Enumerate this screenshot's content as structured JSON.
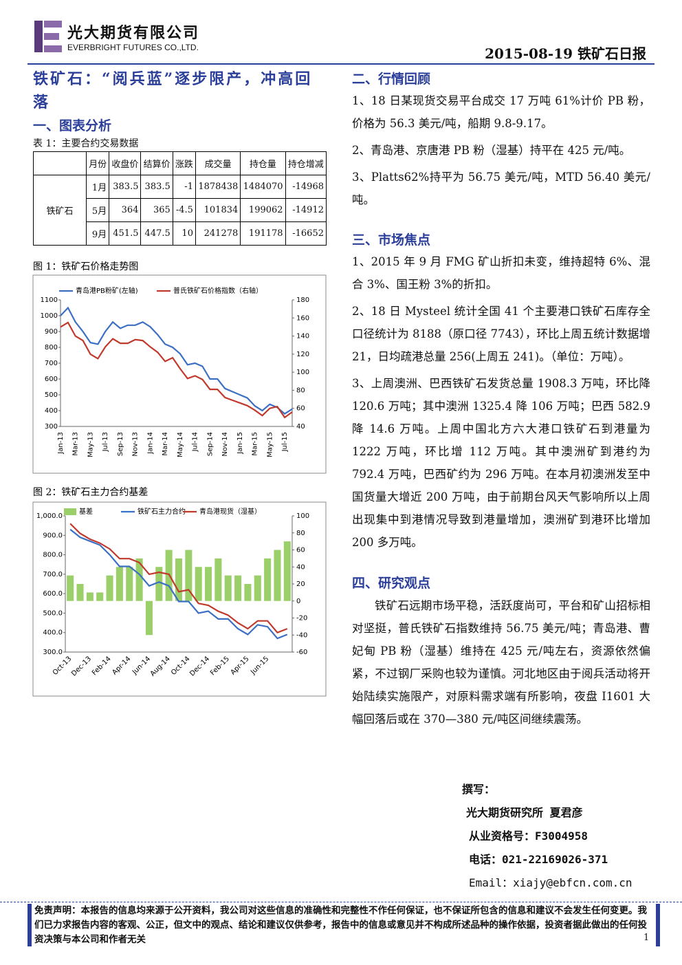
{
  "header": {
    "company_cn": "光大期货有限公司",
    "company_en": "EVERBRIGHT FUTURES CO.,LTD.",
    "date_title": "2015-08-19 铁矿石日报"
  },
  "title": "铁矿石：“阅兵蓝”逐步限产，冲高回落",
  "section1": {
    "heading": "一、图表分析",
    "table_caption": "表 1：主要合约交易数据",
    "table": {
      "columns": [
        "月份",
        "收盘价",
        "结算价",
        "涨跌",
        "成交量",
        "持仓量",
        "持仓增减"
      ],
      "group": "铁矿石",
      "rows": [
        [
          "1月",
          383.5,
          383.5,
          -1,
          1878438,
          1484070,
          -14968
        ],
        [
          "5月",
          364,
          365,
          -4.5,
          101834,
          199062,
          -14912
        ],
        [
          "9月",
          451.5,
          447.5,
          10,
          241278,
          191178,
          -16652
        ]
      ]
    }
  },
  "chart_data": [
    {
      "type": "line",
      "title": "图 1：铁矿石价格走势图",
      "categories": [
        "Jan-13",
        null,
        "Mar-13",
        null,
        "May-13",
        null,
        "Jul-13",
        null,
        "Sep-13",
        null,
        "Nov-13",
        null,
        "Jan-14",
        null,
        "Mar-14",
        null,
        "May-14",
        null,
        "Jul-14",
        null,
        "Sep-14",
        null,
        "Nov-14",
        null,
        "Jan-15",
        null,
        "Mar-15",
        null,
        "May-15",
        null,
        "Jul-15",
        null
      ],
      "series": [
        {
          "name": "青岛港PB粉矿(左轴)",
          "color": "#3a6fc4",
          "values": [
            1000,
            1050,
            960,
            900,
            830,
            820,
            900,
            960,
            920,
            940,
            940,
            960,
            930,
            880,
            820,
            800,
            760,
            690,
            700,
            680,
            600,
            600,
            540,
            520,
            500,
            480,
            430,
            400,
            440,
            420,
            380,
            410
          ]
        },
        {
          "name": "普氏铁矿石价格指数（右轴）",
          "color": "#c0392b",
          "axis": "y2",
          "values": [
            150,
            155,
            140,
            135,
            120,
            115,
            128,
            137,
            132,
            132,
            136,
            135,
            128,
            122,
            112,
            116,
            104,
            93,
            96,
            92,
            81,
            81,
            72,
            69,
            66,
            63,
            58,
            52,
            60,
            62,
            50,
            56
          ]
        }
      ],
      "ylim": [
        300,
        1100
      ],
      "yticks": [
        300,
        400,
        500,
        600,
        700,
        800,
        900,
        1000,
        1100
      ],
      "y2lim": [
        40,
        180
      ],
      "y2ticks": [
        40,
        60,
        80,
        100,
        120,
        140,
        160,
        180
      ]
    },
    {
      "type": "combo",
      "title": "图 2：铁矿石主力合约基差",
      "categories": [
        "Oct-13",
        null,
        "Dec-13",
        null,
        "Feb-14",
        null,
        "Apr-14",
        null,
        "Jun-14",
        null,
        "Aug-14",
        null,
        "Oct-14",
        null,
        "Dec-14",
        null,
        "Feb-15",
        null,
        "Apr-15",
        null,
        "Jun-15",
        null,
        null
      ],
      "series": [
        {
          "name": "基差",
          "type": "bar",
          "color": "#9bcf6a",
          "axis": "y2",
          "values": [
            30,
            20,
            10,
            10,
            30,
            40,
            40,
            50,
            -40,
            40,
            60,
            50,
            60,
            40,
            40,
            50,
            30,
            30,
            20,
            30,
            50,
            60,
            70
          ]
        },
        {
          "name": "铁矿石主力合约",
          "type": "line",
          "color": "#3a6fc4",
          "values": [
            930,
            890,
            870,
            850,
            800,
            740,
            740,
            700,
            640,
            660,
            640,
            560,
            560,
            500,
            510,
            470,
            470,
            420,
            390,
            440,
            430,
            370,
            390
          ]
        },
        {
          "name": "青岛港现货（湿基）",
          "type": "line",
          "color": "#c0392b",
          "values": [
            960,
            910,
            880,
            860,
            830,
            780,
            780,
            760,
            700,
            710,
            700,
            610,
            620,
            550,
            540,
            510,
            490,
            450,
            420,
            460,
            460,
            400,
            420
          ]
        }
      ],
      "ylim": [
        300,
        1000
      ],
      "yticks": [
        {
          "value": 300,
          "label": "300.0"
        },
        {
          "value": 400,
          "label": "400.0"
        },
        {
          "value": 500,
          "label": "500.0"
        },
        {
          "value": 600,
          "label": "600.0"
        },
        {
          "value": 700,
          "label": "700.0"
        },
        {
          "value": 800,
          "label": "800.0"
        },
        {
          "value": 900,
          "label": "900.0"
        },
        {
          "value": 1000,
          "label": "1,000.0"
        }
      ],
      "y2lim": [
        -60,
        100
      ],
      "y2ticks": [
        -60,
        -40,
        -20,
        0,
        20,
        40,
        60,
        80,
        100
      ]
    }
  ],
  "section2": {
    "heading": "二、行情回顾",
    "paragraphs": [
      "1、18 日某现货交易平台成交 17 万吨 61%计价 PB 粉，价格为 56.3 美元/吨，船期 9.8-9.17。",
      "2、青岛港、京唐港 PB 粉（湿基）持平在 425 元/吨。",
      "3、Platts62%持平为 56.75 美元/吨，MTD 56.40 美元/吨。"
    ]
  },
  "section3": {
    "heading": "三、市场焦点",
    "paragraphs": [
      "1、2015 年 9 月 FMG 矿山折扣未变，维持超特 6%、混合 3%、国王粉 3%的折扣。",
      "2、18 日 Mysteel 统计全国 41 个主要港口铁矿石库存全口径统计为 8188（原口径 7743），环比上周五统计数据增 21，日均疏港总量 256(上周五 241)。（单位：万吨）。",
      "3、上周澳洲、巴西铁矿石发货总量 1908.3 万吨，环比降 120.6 万吨；其中澳洲 1325.4 降 106 万吨；巴西 582.9 降 14.6 万吨。上周中国北方六大港口铁矿石到港量为 1222 万吨，环比增 112 万吨。其中澳洲矿到港约为 792.4 万吨，巴西矿约为 296 万吨。在本月初澳洲发至中国货量大增近 200 万吨，由于前期台风天气影响所以上周出现集中到港情况导致到港量增加，澳洲矿到港环比增加 200 多万吨。"
    ]
  },
  "section4": {
    "heading": "四、研究观点",
    "paragraph": "铁矿石远期市场平稳，活跃度尚可，平台和矿山招标相对坚挺，普氏铁矿石指数维持 56.75 美元/吨；青岛港、曹妃甸 PB 粉（湿基）维持在 425 元/吨左右，资源依然偏紧，不过钢厂采购也较为谨慎。河北地区由于阅兵活动将开始陆续实施限产，对原料需求端有所影响，夜盘 I1601 大幅回落后或在 370—380 元/吨区间继续震荡。"
  },
  "author": {
    "label": "撰写：",
    "name": "光大期货研究所 夏君彦",
    "license": "从业资格号：F3004958",
    "phone": "电话：021-22169026-371",
    "email": "Email：xiajy@ebfcn.com.cn"
  },
  "footer": {
    "disclaimer": "免责声明：本报告的信息均来源于公开资料，我公司对这些信息的准确性和完整性不作任何保证，也不保证所包含的信息和建议不会发生任何变更。我们已力求报告内容的客观、公正，但文中的观点、结论和建议仅供参考，报告中的信息或意见并不构成所述品种的操作依据，投资者据此做出的任何投资决策与本公司和作者无关",
    "page": 1
  }
}
